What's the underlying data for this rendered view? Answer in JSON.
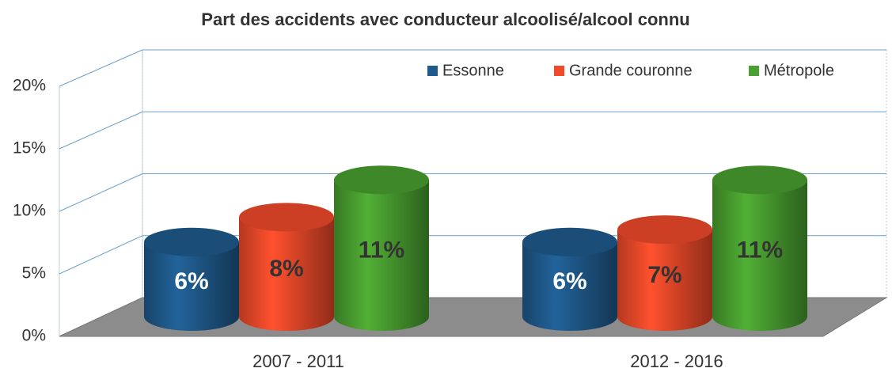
{
  "chart_data": {
    "type": "bar3d",
    "title": "Part des accidents avec conducteur alcoolisé/alcool connu",
    "categories": [
      "2007 - 2011",
      "2012 - 2016"
    ],
    "series": [
      {
        "name": "Essonne",
        "color": "#1f5a8c",
        "values": [
          6,
          6
        ],
        "value_labels": [
          "6%",
          "6%"
        ]
      },
      {
        "name": "Grande couronne",
        "color": "#f04a2a",
        "values": [
          8,
          7
        ],
        "value_labels": [
          "8%",
          "7%"
        ]
      },
      {
        "name": "Métropole",
        "color": "#4aa030",
        "values": [
          11,
          11
        ],
        "value_labels": [
          "11%",
          "11%"
        ]
      }
    ],
    "ylim": [
      0,
      20
    ],
    "yticks": [
      {
        "value": 0,
        "label": "0%"
      },
      {
        "value": 5,
        "label": "5%"
      },
      {
        "value": 10,
        "label": "10%"
      },
      {
        "value": 15,
        "label": "15%"
      },
      {
        "value": 20,
        "label": "20%"
      }
    ],
    "grid": true,
    "legend": "top-right"
  }
}
